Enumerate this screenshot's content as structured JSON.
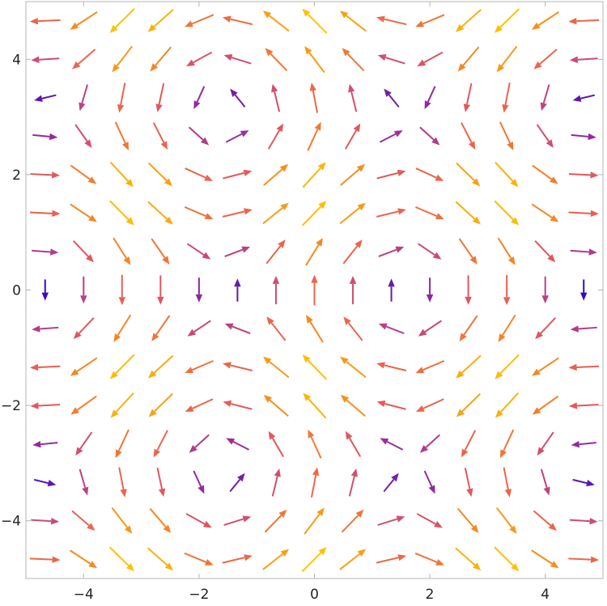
{
  "chart_data": {
    "type": "vector_field",
    "vector_field": {
      "u": "sin(y)",
      "v": "cos(x)"
    },
    "x_range": [
      -5,
      5
    ],
    "y_range": [
      -5,
      5
    ],
    "grid_points_per_axis": 15,
    "color_scheme": "magnitude: low = blue/purple, high = orange/yellow",
    "colors": [
      "#3A06C6",
      "#6E1FA6",
      "#9A2D9A",
      "#C8487A",
      "#E85C55",
      "#F78A1E",
      "#FFC300"
    ],
    "x_ticks": [
      -4,
      -2,
      0,
      2,
      4
    ],
    "y_ticks": [
      -4,
      -2,
      0,
      2,
      4
    ],
    "x_tick_labels": [
      "−4",
      "−2",
      "0",
      "2",
      "4"
    ],
    "y_tick_labels": [
      "−4",
      "−2",
      "0",
      "2",
      "4"
    ],
    "grid": false,
    "legend": "none",
    "title": "",
    "xlabel": "",
    "ylabel": ""
  }
}
